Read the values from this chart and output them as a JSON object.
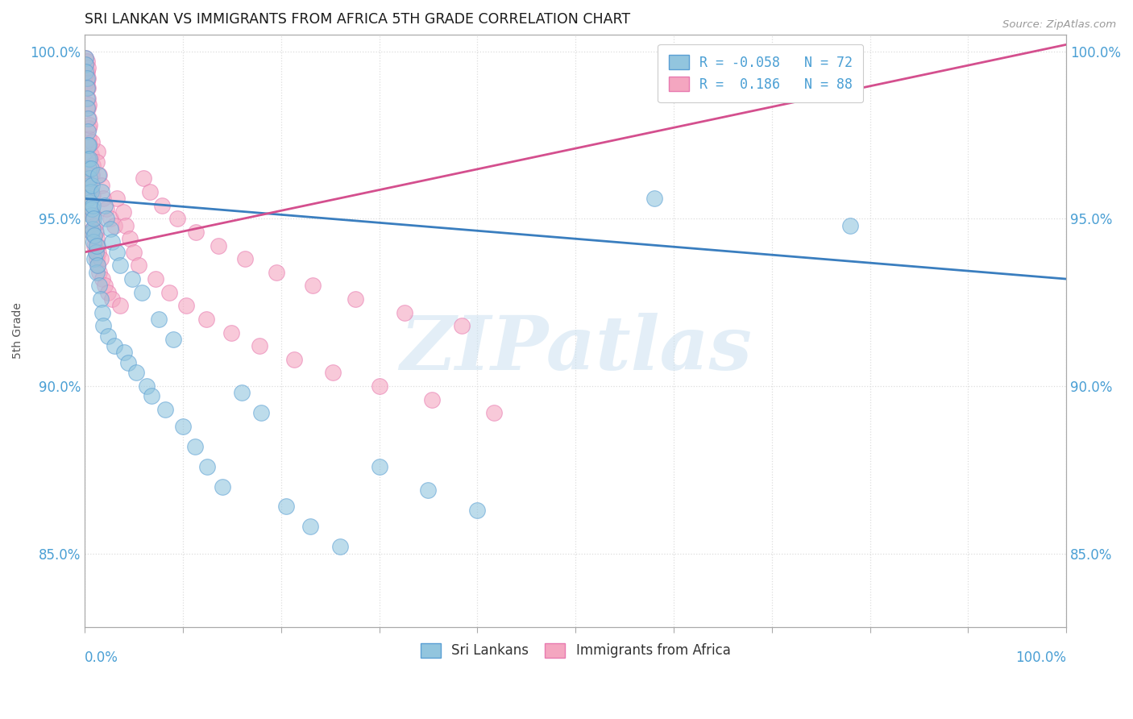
{
  "title": "SRI LANKAN VS IMMIGRANTS FROM AFRICA 5TH GRADE CORRELATION CHART",
  "source": "Source: ZipAtlas.com",
  "ylabel": "5th Grade",
  "legend_labels": [
    "Sri Lankans",
    "Immigrants from Africa"
  ],
  "legend_R": [
    -0.058,
    0.186
  ],
  "legend_N": [
    72,
    88
  ],
  "blue_color": "#92c5de",
  "pink_color": "#f4a6c0",
  "blue_line_color": "#3a7ebf",
  "pink_line_color": "#d44f8e",
  "blue_edge_color": "#5a9fd4",
  "pink_edge_color": "#e87ab0",
  "watermark_color": "#c8dff0",
  "watermark": "ZIPatlas",
  "xmin": 0.0,
  "xmax": 1.0,
  "ymin": 0.828,
  "ymax": 1.005,
  "ytick_vals": [
    0.85,
    0.9,
    0.95,
    1.0
  ],
  "ytick_labels": [
    "85.0%",
    "90.0%",
    "95.0%",
    "100.0%"
  ],
  "blue_trend_x": [
    0.0,
    1.0
  ],
  "blue_trend_y": [
    0.956,
    0.932
  ],
  "pink_trend_x": [
    0.0,
    1.0
  ],
  "pink_trend_y": [
    0.94,
    1.002
  ],
  "sri_lankan_x": [
    0.001,
    0.001,
    0.001,
    0.002,
    0.002,
    0.002,
    0.002,
    0.003,
    0.003,
    0.003,
    0.003,
    0.004,
    0.004,
    0.004,
    0.004,
    0.005,
    0.005,
    0.005,
    0.006,
    0.006,
    0.006,
    0.007,
    0.007,
    0.007,
    0.008,
    0.008,
    0.009,
    0.009,
    0.01,
    0.01,
    0.011,
    0.012,
    0.012,
    0.013,
    0.014,
    0.015,
    0.016,
    0.017,
    0.018,
    0.019,
    0.02,
    0.022,
    0.024,
    0.026,
    0.028,
    0.03,
    0.033,
    0.036,
    0.04,
    0.044,
    0.048,
    0.052,
    0.058,
    0.063,
    0.068,
    0.075,
    0.082,
    0.09,
    0.1,
    0.112,
    0.125,
    0.14,
    0.16,
    0.18,
    0.205,
    0.23,
    0.26,
    0.3,
    0.35,
    0.4,
    0.58,
    0.78
  ],
  "sri_lankan_y": [
    0.998,
    0.996,
    0.994,
    0.992,
    0.989,
    0.986,
    0.983,
    0.98,
    0.976,
    0.972,
    0.968,
    0.972,
    0.965,
    0.96,
    0.956,
    0.968,
    0.962,
    0.955,
    0.965,
    0.958,
    0.951,
    0.96,
    0.953,
    0.946,
    0.954,
    0.947,
    0.95,
    0.943,
    0.945,
    0.938,
    0.94,
    0.942,
    0.934,
    0.936,
    0.963,
    0.93,
    0.926,
    0.958,
    0.922,
    0.918,
    0.954,
    0.95,
    0.915,
    0.947,
    0.943,
    0.912,
    0.94,
    0.936,
    0.91,
    0.907,
    0.932,
    0.904,
    0.928,
    0.9,
    0.897,
    0.92,
    0.893,
    0.914,
    0.888,
    0.882,
    0.876,
    0.87,
    0.898,
    0.892,
    0.864,
    0.858,
    0.852,
    0.876,
    0.869,
    0.863,
    0.956,
    0.948
  ],
  "africa_x": [
    0.001,
    0.001,
    0.001,
    0.002,
    0.002,
    0.002,
    0.002,
    0.003,
    0.003,
    0.003,
    0.003,
    0.003,
    0.004,
    0.004,
    0.004,
    0.004,
    0.005,
    0.005,
    0.005,
    0.005,
    0.006,
    0.006,
    0.006,
    0.007,
    0.007,
    0.007,
    0.008,
    0.008,
    0.008,
    0.009,
    0.009,
    0.01,
    0.01,
    0.011,
    0.011,
    0.012,
    0.012,
    0.013,
    0.013,
    0.014,
    0.015,
    0.015,
    0.016,
    0.017,
    0.018,
    0.019,
    0.02,
    0.022,
    0.024,
    0.026,
    0.028,
    0.03,
    0.033,
    0.036,
    0.039,
    0.042,
    0.046,
    0.05,
    0.055,
    0.06,
    0.066,
    0.072,
    0.079,
    0.086,
    0.094,
    0.103,
    0.113,
    0.124,
    0.136,
    0.149,
    0.163,
    0.178,
    0.195,
    0.213,
    0.232,
    0.253,
    0.276,
    0.3,
    0.326,
    0.354,
    0.384,
    0.417,
    0.013,
    0.008,
    0.005,
    0.003,
    0.007,
    0.012
  ],
  "africa_y": [
    0.998,
    0.996,
    0.993,
    0.991,
    0.994,
    0.997,
    0.989,
    0.992,
    0.995,
    0.986,
    0.989,
    0.983,
    0.98,
    0.984,
    0.977,
    0.974,
    0.978,
    0.972,
    0.968,
    0.965,
    0.969,
    0.963,
    0.959,
    0.963,
    0.957,
    0.953,
    0.957,
    0.951,
    0.947,
    0.951,
    0.945,
    0.948,
    0.942,
    0.946,
    0.94,
    0.944,
    0.938,
    0.942,
    0.936,
    0.94,
    0.963,
    0.934,
    0.938,
    0.96,
    0.932,
    0.956,
    0.93,
    0.953,
    0.928,
    0.95,
    0.926,
    0.948,
    0.956,
    0.924,
    0.952,
    0.948,
    0.944,
    0.94,
    0.936,
    0.962,
    0.958,
    0.932,
    0.954,
    0.928,
    0.95,
    0.924,
    0.946,
    0.92,
    0.942,
    0.916,
    0.938,
    0.912,
    0.934,
    0.908,
    0.93,
    0.904,
    0.926,
    0.9,
    0.922,
    0.896,
    0.918,
    0.892,
    0.97,
    0.966,
    0.962,
    0.958,
    0.973,
    0.967
  ],
  "background_color": "#ffffff",
  "grid_color": "#dddddd",
  "tick_color": "#4a9fd4",
  "title_color": "#1a1a1a",
  "axis_color": "#aaaaaa"
}
